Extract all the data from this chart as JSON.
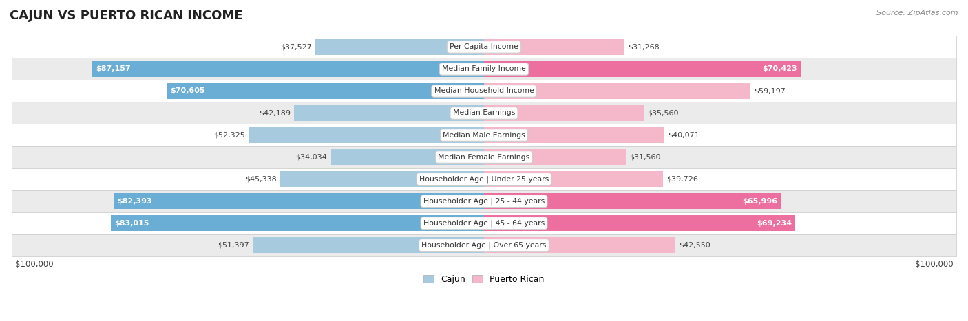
{
  "title": "CAJUN VS PUERTO RICAN INCOME",
  "source": "Source: ZipAtlas.com",
  "max_value": 100000,
  "categories": [
    "Per Capita Income",
    "Median Family Income",
    "Median Household Income",
    "Median Earnings",
    "Median Male Earnings",
    "Median Female Earnings",
    "Householder Age | Under 25 years",
    "Householder Age | 25 - 44 years",
    "Householder Age | 45 - 64 years",
    "Householder Age | Over 65 years"
  ],
  "cajun_values": [
    37527,
    87157,
    70605,
    42189,
    52325,
    34034,
    45338,
    82393,
    83015,
    51397
  ],
  "puerto_rican_values": [
    31268,
    70423,
    59197,
    35560,
    40071,
    31560,
    39726,
    65996,
    69234,
    42550
  ],
  "cajun_labels": [
    "$37,527",
    "$87,157",
    "$70,605",
    "$42,189",
    "$52,325",
    "$34,034",
    "$45,338",
    "$82,393",
    "$83,015",
    "$51,397"
  ],
  "puerto_rican_labels": [
    "$31,268",
    "$70,423",
    "$59,197",
    "$35,560",
    "$40,071",
    "$31,560",
    "$39,726",
    "$65,996",
    "$69,234",
    "$42,550"
  ],
  "cajun_color_light": "#A8CADF",
  "cajun_color_dark": "#6AADD5",
  "puerto_rican_color_light": "#F5B8CB",
  "puerto_rican_color_dark": "#EC6FA0",
  "row_colors": [
    "#ffffff",
    "#ebebeb"
  ],
  "row_border": "#d0d0d0",
  "bar_height": 0.72,
  "cajun_label_inside": [
    false,
    true,
    true,
    false,
    false,
    false,
    false,
    true,
    true,
    false
  ],
  "puerto_rican_label_inside": [
    false,
    true,
    false,
    false,
    false,
    false,
    false,
    true,
    true,
    false
  ]
}
